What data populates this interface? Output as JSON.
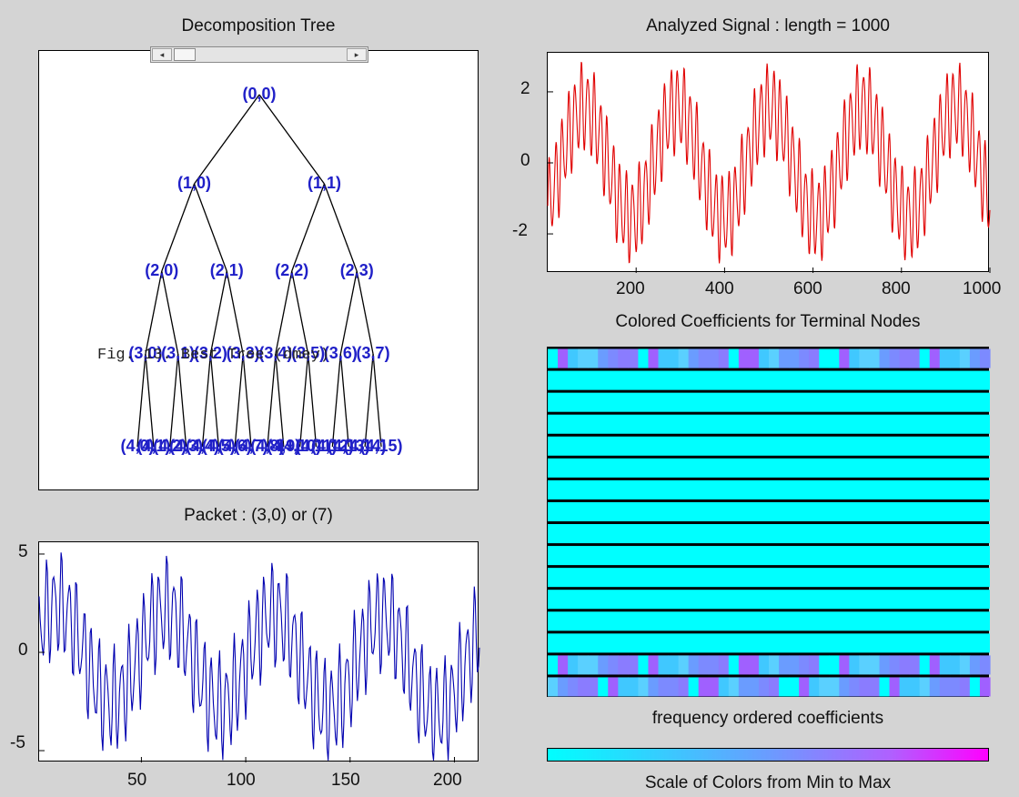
{
  "titles": {
    "tree": "Decomposition Tree",
    "signal": "Analyzed Signal : length = 1000",
    "coeffs": "Colored Coefficients for Terminal Nodes",
    "packet": "Packet : (3,0) or (7)",
    "freq": "frequency ordered coefficients",
    "scale": "Scale of Colors from Min to Max"
  },
  "overlay_text": "Fig. 13. Best Tree (dmey)",
  "slider": {
    "left_arrow": "◂",
    "right_arrow": "▸"
  },
  "tree": {
    "nodes": [
      {
        "label": "(0,0)",
        "depth": 0,
        "pos": 0
      },
      {
        "label": "(1,0)",
        "depth": 1,
        "pos": 0
      },
      {
        "label": "(1,1)",
        "depth": 1,
        "pos": 1
      },
      {
        "label": "(2,0)",
        "depth": 2,
        "pos": 0
      },
      {
        "label": "(2,1)",
        "depth": 2,
        "pos": 1
      },
      {
        "label": "(2,2)",
        "depth": 2,
        "pos": 2
      },
      {
        "label": "(2,3)",
        "depth": 2,
        "pos": 3
      },
      {
        "label": "(3,0)",
        "depth": 3,
        "pos": 0
      },
      {
        "label": "(3,1)",
        "depth": 3,
        "pos": 1
      },
      {
        "label": "(3,2)",
        "depth": 3,
        "pos": 2
      },
      {
        "label": "(3,3)",
        "depth": 3,
        "pos": 3
      },
      {
        "label": "(3,4)",
        "depth": 3,
        "pos": 4
      },
      {
        "label": "(3,5)",
        "depth": 3,
        "pos": 5
      },
      {
        "label": "(3,6)",
        "depth": 3,
        "pos": 6
      },
      {
        "label": "(3,7)",
        "depth": 3,
        "pos": 7
      },
      {
        "label": "(4,0)",
        "depth": 4,
        "pos": 0
      },
      {
        "label": "(4,1)",
        "depth": 4,
        "pos": 1
      },
      {
        "label": "(4,2)",
        "depth": 4,
        "pos": 2
      },
      {
        "label": "(4,3)",
        "depth": 4,
        "pos": 3
      },
      {
        "label": "(4,4)",
        "depth": 4,
        "pos": 4
      },
      {
        "label": "(4,5)",
        "depth": 4,
        "pos": 5
      },
      {
        "label": "(4,6)",
        "depth": 4,
        "pos": 6
      },
      {
        "label": "(4,7)",
        "depth": 4,
        "pos": 7
      },
      {
        "label": "(4,8)",
        "depth": 4,
        "pos": 8
      },
      {
        "label": "(4,9)",
        "depth": 4,
        "pos": 9
      },
      {
        "label": "(4,10)",
        "depth": 4,
        "pos": 10
      },
      {
        "label": "(4,11)",
        "depth": 4,
        "pos": 11
      },
      {
        "label": "(4,12)",
        "depth": 4,
        "pos": 12
      },
      {
        "label": "(4,13)",
        "depth": 4,
        "pos": 13
      },
      {
        "label": "(4,14)",
        "depth": 4,
        "pos": 14
      },
      {
        "label": "(4,15)",
        "depth": 4,
        "pos": 15
      }
    ]
  },
  "signal_axes": {
    "xticks": [
      "200",
      "400",
      "600",
      "800",
      "1000"
    ],
    "yticks": [
      "2",
      "0",
      "-2"
    ]
  },
  "packet_axes": {
    "xticks": [
      "50",
      "100",
      "150",
      "200"
    ],
    "yticks": [
      "5",
      "0",
      "-5"
    ]
  },
  "colors": {
    "signal_line": "#e00000",
    "packet_line": "#0000b0",
    "tree_label": "#2020c8",
    "cyan": "#00ffff",
    "magenta": "#ff00ff",
    "row_separator": "#000000"
  }
}
